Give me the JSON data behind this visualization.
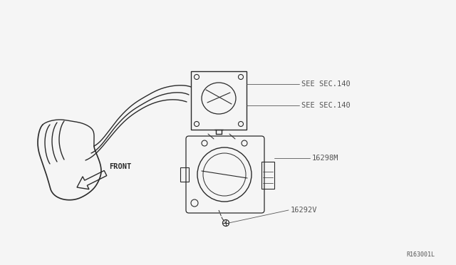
{
  "background_color": "#f5f5f5",
  "line_color": "#2a2a2a",
  "label_color": "#555555",
  "diagram_ref": "R163001L",
  "labels": {
    "see_sec_140_top": "SEE SEC.140",
    "see_sec_140_bot": "SEE SEC.140",
    "part_16298M": "16298M",
    "part_16292V": "16292V",
    "front": "FRONT"
  },
  "font_size": 7.5,
  "figsize": [
    6.4,
    3.72
  ],
  "dpi": 100,
  "xlim": [
    0,
    640
  ],
  "ylim": [
    0,
    372
  ]
}
